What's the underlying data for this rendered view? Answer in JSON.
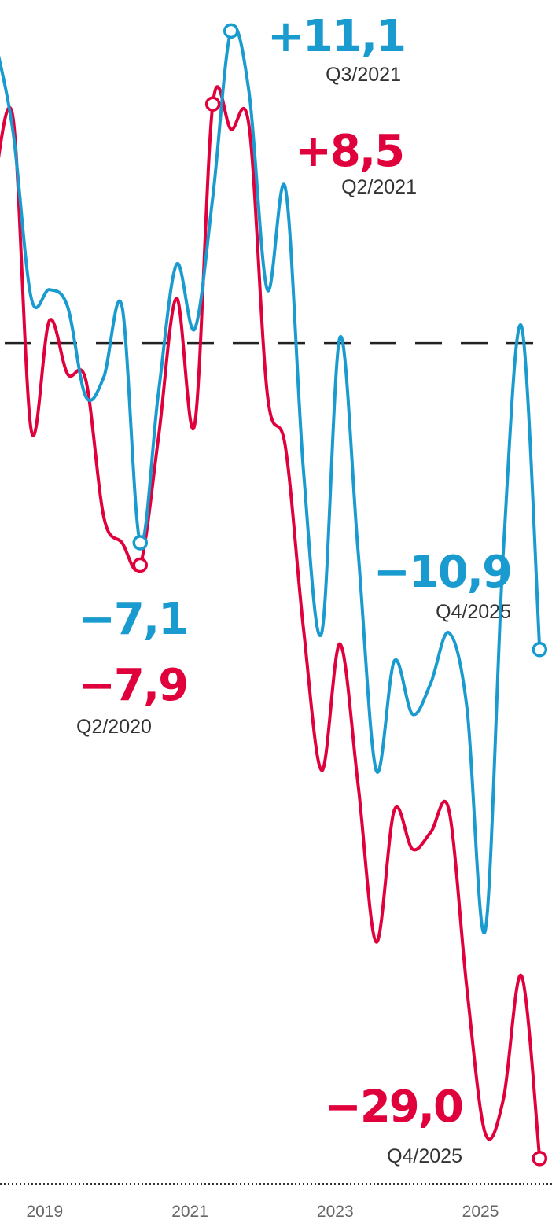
{
  "chart_data": {
    "type": "line",
    "x": [
      2018.25,
      2018.5,
      2018.75,
      2019.0,
      2019.25,
      2019.5,
      2019.75,
      2020.0,
      2020.25,
      2020.5,
      2020.75,
      2021.0,
      2021.25,
      2021.5,
      2021.75,
      2022.0,
      2022.25,
      2022.5,
      2022.75,
      2023.0,
      2023.25,
      2023.5,
      2023.75,
      2024.0,
      2024.25,
      2024.5,
      2024.75,
      2025.0,
      2025.25,
      2025.5,
      2025.75
    ],
    "series": [
      {
        "color": "#1a9bcf",
        "values": [
          10.8,
          7.5,
          1.6,
          1.9,
          1.3,
          -1.9,
          -1.2,
          1.3,
          -7.1,
          -1.8,
          2.8,
          0.5,
          5.2,
          11.1,
          8.9,
          1.9,
          5.5,
          -4.6,
          -10.3,
          0.2,
          -7.4,
          -15.2,
          -11.3,
          -13.2,
          -12.1,
          -10.3,
          -13.0,
          -20.9,
          -7.4,
          0.6,
          -10.9
        ],
        "value_labels": [
          null,
          null,
          null,
          null,
          null,
          null,
          null,
          null,
          "−7,1",
          null,
          null,
          null,
          null,
          "+11,1",
          null,
          null,
          null,
          null,
          null,
          null,
          null,
          null,
          null,
          null,
          null,
          null,
          null,
          null,
          null,
          null,
          "−10,9"
        ]
      },
      {
        "color": "#e0003c",
        "values": [
          5.8,
          8.0,
          -3.1,
          0.8,
          -1.1,
          -1.3,
          -6.2,
          -7.1,
          -7.9,
          -3.4,
          1.6,
          -2.9,
          8.5,
          7.6,
          7.7,
          -1.8,
          -3.7,
          -10.2,
          -15.2,
          -10.7,
          -15.7,
          -21.3,
          -16.6,
          -18.0,
          -17.4,
          -16.6,
          -23.0,
          -28.1,
          -26.9,
          -22.5,
          -29.0
        ],
        "value_labels": [
          null,
          null,
          null,
          null,
          null,
          null,
          null,
          null,
          "−7,9",
          null,
          null,
          null,
          "+8,5",
          null,
          null,
          null,
          null,
          null,
          null,
          null,
          null,
          null,
          null,
          null,
          null,
          null,
          null,
          null,
          null,
          null,
          "−29,0"
        ]
      }
    ],
    "annotations": [
      "Q3/2021",
      "Q2/2021",
      "Q2/2020",
      "Q4/2025",
      "Q4/2025"
    ],
    "xlim": [
      2018.32,
      2025.92
    ],
    "xticks": [
      2019,
      2021,
      2023,
      2025
    ],
    "ylim": [
      -29.9,
      12.2
    ],
    "zero_line": true
  }
}
